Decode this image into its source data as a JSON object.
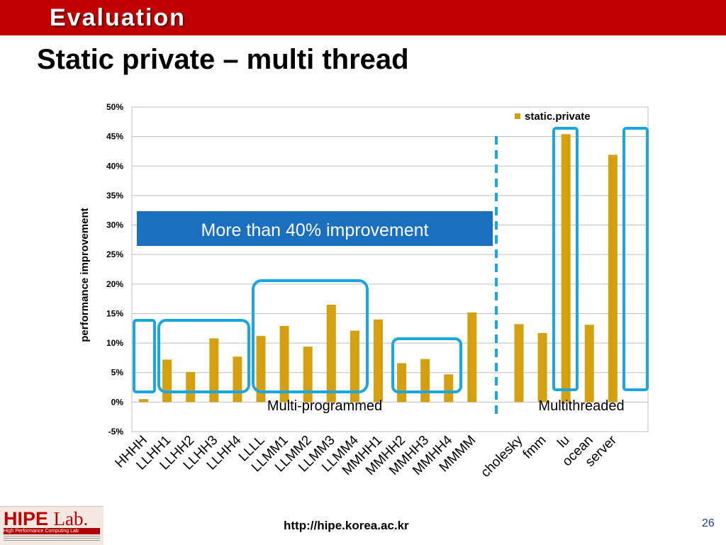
{
  "header": {
    "section": "Evaluation"
  },
  "slide": {
    "title": "Static private – multi thread"
  },
  "colors": {
    "bar": "#d4a010",
    "highlight": "#1aa6e0",
    "callout_bg": "#1a6fbf",
    "header_bg": "#c00000"
  },
  "chart_data": {
    "type": "bar",
    "ylabel": "performance improvement",
    "ylim": [
      -0.05,
      0.5
    ],
    "yticks": [
      "-5%",
      "0%",
      "5%",
      "10%",
      "15%",
      "20%",
      "25%",
      "30%",
      "35%",
      "40%",
      "45%",
      "50%"
    ],
    "grid": true,
    "legend": {
      "position": "top-right",
      "entries": [
        "static.private"
      ]
    },
    "categories": [
      "HHHH",
      "LLHH1",
      "LLHH2",
      "LLHH3",
      "LLHH4",
      "LLLL",
      "LLMM1",
      "LLMM2",
      "LLMM3",
      "LLMM4",
      "MMHH1",
      "MMHH2",
      "MMHH3",
      "MMHH4",
      "MMMM",
      "cholesky",
      "fmm",
      "lu",
      "ocean",
      "server"
    ],
    "series": [
      {
        "name": "static.private",
        "values": [
          0.005,
          0.072,
          0.051,
          0.108,
          0.077,
          0.112,
          0.129,
          0.094,
          0.165,
          0.121,
          0.14,
          0.066,
          0.073,
          0.047,
          0.152,
          0.132,
          0.117,
          0.454,
          0.131,
          0.419
        ]
      }
    ],
    "annotations": {
      "callout": "More than 40% improvement",
      "group_left": "Multi-programmed",
      "group_right": "Multithreaded"
    }
  },
  "footer": {
    "url": "http://hipe.korea.ac.kr",
    "page": "26"
  },
  "logo": {
    "name": "HIPE",
    "suffix": "Lab.",
    "subtitle": "High Performance Computing Lab"
  }
}
